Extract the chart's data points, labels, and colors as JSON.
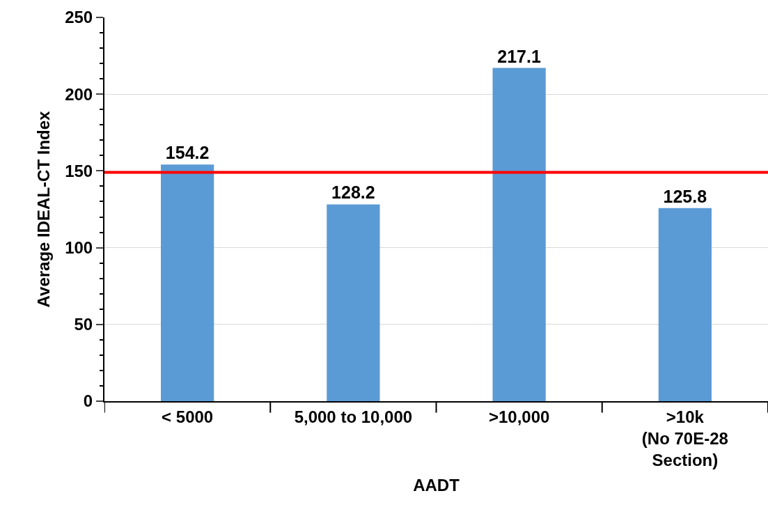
{
  "chart_data": {
    "type": "bar",
    "xlabel": "AADT",
    "ylabel": "Average IDEAL-CT Index",
    "categories": [
      "< 5000",
      "5,000 to 10,000",
      ">10,000",
      ">10k\n(No 70E-28\nSection)"
    ],
    "values": [
      154.2,
      128.2,
      217.1,
      125.8
    ],
    "color": "#5b9bd5",
    "data_labels": true,
    "ylim": [
      0,
      250
    ],
    "yticks": [
      0,
      50,
      100,
      150,
      200,
      250
    ],
    "grid": "y",
    "ref_lines": [
      {
        "axis": "y",
        "value": 149,
        "color": "#ff0000",
        "line_style": "solid"
      }
    ]
  }
}
